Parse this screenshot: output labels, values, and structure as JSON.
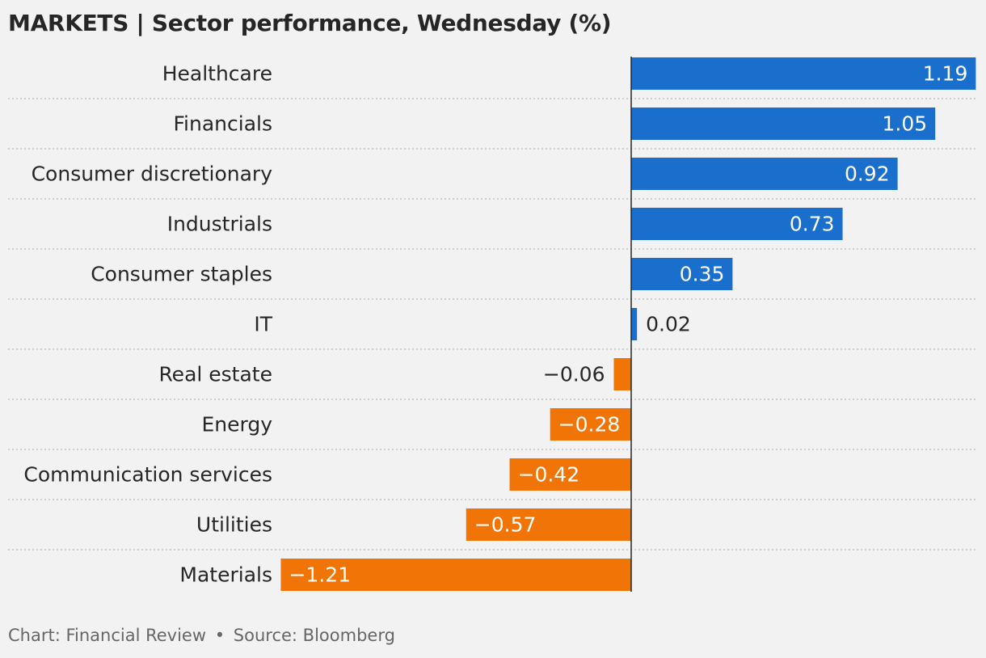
{
  "header": {
    "title": "MARKETS | Sector performance, Wednesday (%)"
  },
  "footer": {
    "chart_credit": "Chart: Financial Review",
    "separator": "•",
    "source": "Source: Bloomberg"
  },
  "colors": {
    "positive": "#1a6fcc",
    "negative": "#f07406",
    "background": "#f2f2f2",
    "axis": "#262626",
    "gridline": "#bdbdbd"
  },
  "chart_data": {
    "type": "bar",
    "orientation": "horizontal",
    "categories": [
      "Healthcare",
      "Financials",
      "Consumer discretionary",
      "Industrials",
      "Consumer staples",
      "IT",
      "Real estate",
      "Energy",
      "Communication services",
      "Utilities",
      "Materials"
    ],
    "values": [
      1.19,
      1.05,
      0.92,
      0.73,
      0.35,
      0.02,
      -0.06,
      -0.28,
      -0.42,
      -0.57,
      -1.21
    ],
    "value_labels": [
      "1.19",
      "1.05",
      "0.92",
      "0.73",
      "0.35",
      "0.02",
      "−0.06",
      "−0.28",
      "−0.42",
      "−0.57",
      "−1.21"
    ],
    "title": "MARKETS | Sector performance, Wednesday (%)",
    "xlabel": "",
    "ylabel": "",
    "xlim": [
      -1.21,
      1.19
    ],
    "grid": "dotted row separators",
    "legend": "none"
  }
}
